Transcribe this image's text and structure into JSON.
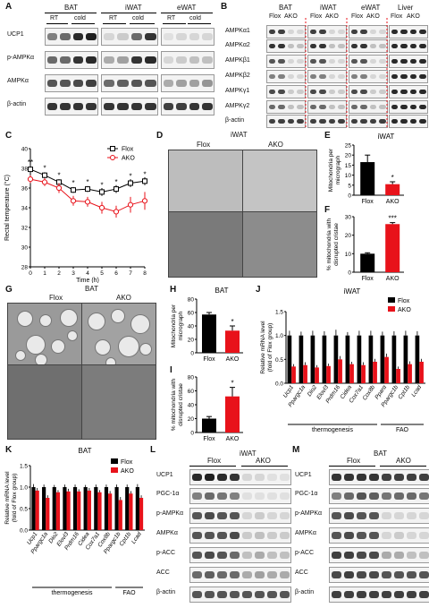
{
  "panels": {
    "A": "A",
    "B": "B",
    "C": "C",
    "D": "D",
    "E": "E",
    "F": "F",
    "G": "G",
    "H": "H",
    "I": "I",
    "J": "J",
    "K": "K",
    "L": "L",
    "M": "M"
  },
  "panelA": {
    "groups": [
      "BAT",
      "iWAT",
      "eWAT"
    ],
    "conditions": [
      "RT",
      "cold",
      "RT",
      "cold",
      "RT",
      "cold"
    ],
    "rows": [
      "UCP1",
      "p-AMPKα",
      "AMPKα",
      "β-actin"
    ]
  },
  "panelB": {
    "tissues": [
      "BAT",
      "iWAT",
      "eWAT",
      "Liver"
    ],
    "genotypes": [
      "Flox",
      "AKO",
      "Flox",
      "AKO",
      "Flox",
      "AKO",
      "Flox",
      "AKO"
    ],
    "rows": [
      "AMPKα1",
      "AMPKα2",
      "AMPKβ1",
      "AMPKβ2",
      "AMPKγ1",
      "AMPKγ2",
      "β-actin"
    ]
  },
  "panelD": {
    "title": "iWAT",
    "cols": [
      "Flox",
      "AKO"
    ]
  },
  "panelG": {
    "title": "BAT",
    "cols": [
      "Flox",
      "AKO"
    ]
  },
  "panelL": {
    "title": "iWAT",
    "cols": [
      "Flox",
      "AKO"
    ],
    "rows": [
      "UCP1",
      "PGC-1α",
      "p-AMPKα",
      "AMPKα",
      "p-ACC",
      "ACC",
      "β-actin"
    ]
  },
  "panelM": {
    "title": "BAT",
    "cols": [
      "Flox",
      "AKO"
    ],
    "rows": [
      "UCP1",
      "PGC-1α",
      "p-AMPKα",
      "AMPKα",
      "p-ACC",
      "ACC",
      "β-actin"
    ]
  },
  "colors": {
    "flox": "#000000",
    "ako": "#e8121a"
  },
  "chart_data": [
    {
      "id": "C",
      "type": "line",
      "xlabel": "Time (h)",
      "ylabel": "Rectal temperature (°C)",
      "x": [
        0,
        1,
        2,
        3,
        4,
        5,
        6,
        7,
        8
      ],
      "ylim": [
        28,
        40
      ],
      "xticks": [
        "0",
        "1",
        "2",
        "3",
        "4",
        "5",
        "6",
        "7",
        "8"
      ],
      "yticks": [
        "28",
        "30",
        "32",
        "34",
        "36",
        "38",
        "40"
      ],
      "legend": "top-right",
      "series": [
        {
          "name": "Flox",
          "values": [
            37.9,
            37.3,
            36.6,
            35.8,
            35.9,
            35.6,
            35.9,
            36.5,
            36.7
          ],
          "err": [
            0.3,
            0.3,
            0.3,
            0.3,
            0.3,
            0.4,
            0.4,
            0.4,
            0.4
          ]
        },
        {
          "name": "AKO",
          "values": [
            36.9,
            36.6,
            36.0,
            34.7,
            34.6,
            34.0,
            33.6,
            34.3,
            34.7
          ],
          "err": [
            0.4,
            0.4,
            0.5,
            0.5,
            0.5,
            0.6,
            0.6,
            0.8,
            0.9
          ]
        }
      ],
      "stars": [
        "**",
        "*",
        "*",
        "*",
        "*",
        "*",
        "*",
        "*",
        "*"
      ]
    },
    {
      "id": "E",
      "type": "bar",
      "title": "iWAT",
      "ylabel": "Mitochondria per micrograph",
      "categories": [
        "Flox",
        "AKO"
      ],
      "values": [
        16.5,
        5.5
      ],
      "err": [
        3.5,
        1.2
      ],
      "ylim": [
        0,
        25
      ],
      "yticks": [
        "0",
        "5",
        "10",
        "15",
        "20",
        "25"
      ],
      "stars": [
        "",
        "*"
      ]
    },
    {
      "id": "F",
      "type": "bar",
      "ylabel": "% mitochondria with disrupted cristae",
      "categories": [
        "Flox",
        "AKO"
      ],
      "values": [
        10,
        26
      ],
      "err": [
        0.5,
        0.8
      ],
      "ylim": [
        0,
        30
      ],
      "yticks": [
        "0",
        "10",
        "20",
        "30"
      ],
      "stars": [
        "",
        "***"
      ]
    },
    {
      "id": "H",
      "type": "bar",
      "title": "BAT",
      "ylabel": "Mitochondria per micrograph",
      "categories": [
        "Flox",
        "AKO"
      ],
      "values": [
        57,
        33
      ],
      "err": [
        3,
        7
      ],
      "ylim": [
        0,
        80
      ],
      "yticks": [
        "0",
        "20",
        "40",
        "60",
        "80"
      ],
      "stars": [
        "",
        "*"
      ]
    },
    {
      "id": "I",
      "type": "bar",
      "ylabel": "% mitochondria with disrupted cristae",
      "categories": [
        "Flox",
        "AKO"
      ],
      "values": [
        20,
        52
      ],
      "err": [
        3,
        13
      ],
      "ylim": [
        0,
        80
      ],
      "yticks": [
        "0",
        "20",
        "40",
        "60",
        "80"
      ],
      "stars": [
        "",
        "*"
      ]
    },
    {
      "id": "J",
      "type": "bar",
      "title": "iWAT",
      "ylabel": "Relative mRNA level (fold of Flox group)",
      "categories": [
        "Ucp1",
        "Ppargc1a",
        "Dio2",
        "Elovl3",
        "Prdm16",
        "Cidea",
        "Cox7a1",
        "Cox8b",
        "Pparα",
        "Ppargc1b",
        "Cpt1b",
        "Lcad"
      ],
      "groups": [
        "thermogenesis",
        "FAO"
      ],
      "ylim": [
        0,
        1.5
      ],
      "yticks": [
        "0.0",
        "0.5",
        "1.0",
        "1.5"
      ],
      "legend": "top-right",
      "series": [
        {
          "name": "Flox",
          "values": [
            1,
            1,
            1,
            1,
            1,
            1,
            1,
            1,
            1,
            1,
            1,
            1
          ],
          "err": [
            0.1,
            0.08,
            0.1,
            0.09,
            0.12,
            0.07,
            0.1,
            0.1,
            0.08,
            0.09,
            0.1,
            0.09
          ]
        },
        {
          "name": "AKO",
          "values": [
            0.35,
            0.38,
            0.33,
            0.36,
            0.5,
            0.4,
            0.38,
            0.45,
            0.55,
            0.3,
            0.4,
            0.45
          ],
          "err": [
            0.05,
            0.06,
            0.05,
            0.05,
            0.07,
            0.05,
            0.06,
            0.06,
            0.07,
            0.05,
            0.06,
            0.06
          ]
        }
      ],
      "stars": [
        "*",
        "**",
        "*",
        "*",
        "***",
        "*",
        "*",
        "*",
        "**",
        "***",
        "*",
        "*"
      ]
    },
    {
      "id": "K",
      "type": "bar",
      "title": "BAT",
      "ylabel": "Relative mRNA level (fold of Flox group)",
      "categories": [
        "Ucp1",
        "Ppargc1a",
        "Dio2",
        "Elovl3",
        "Prdm16",
        "Cidea",
        "Cox7a1",
        "Cox8b",
        "Ppargc1b",
        "Cpt1b",
        "Lcad"
      ],
      "groups": [
        "thermogenesis",
        "FAO"
      ],
      "ylim": [
        0,
        1.5
      ],
      "yticks": [
        "0.0",
        "0.5",
        "1.0",
        "1.5"
      ],
      "legend": "top-right",
      "series": [
        {
          "name": "Flox",
          "values": [
            1,
            1,
            1,
            1,
            1,
            1,
            1,
            1,
            1,
            1,
            1
          ],
          "err": [
            0.07,
            0.06,
            0.05,
            0.06,
            0.06,
            0.05,
            0.06,
            0.06,
            0.06,
            0.06,
            0.07
          ]
        },
        {
          "name": "AKO",
          "values": [
            0.92,
            0.75,
            0.88,
            0.9,
            0.9,
            0.92,
            0.88,
            0.85,
            0.7,
            0.85,
            0.75
          ],
          "err": [
            0.06,
            0.06,
            0.05,
            0.06,
            0.05,
            0.06,
            0.05,
            0.06,
            0.07,
            0.06,
            0.06
          ]
        }
      ],
      "stars": [
        "",
        "*",
        "",
        "",
        "",
        "",
        "",
        "",
        "***",
        "*",
        "**"
      ]
    }
  ]
}
